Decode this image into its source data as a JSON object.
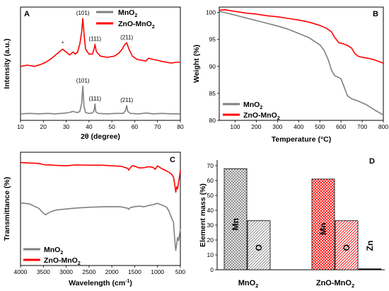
{
  "colors": {
    "mno2": "#808080",
    "zno_mno2": "#ff0000",
    "axis": "#000000"
  },
  "chart_data": [
    {
      "panel": "A",
      "type": "line",
      "xlabel": "2θ (degree)",
      "ylabel": "Intensity (a.u.)",
      "xlim": [
        10,
        80
      ],
      "xticks": [
        "10",
        "20",
        "30",
        "40",
        "50",
        "60",
        "70",
        "80"
      ],
      "legend": {
        "position": "top-right",
        "entries": [
          "MnO2",
          "ZnO-MnO2"
        ]
      },
      "annotations": [
        {
          "text": "(101)",
          "x": 37.3,
          "series": "ZnO-MnO2"
        },
        {
          "text": "(111)",
          "x": 42.6,
          "series": "ZnO-MnO2"
        },
        {
          "text": "(211)",
          "x": 56.5,
          "series": "ZnO-MnO2"
        },
        {
          "text": "*",
          "x": 28.5,
          "series": "ZnO-MnO2"
        },
        {
          "text": "(101)",
          "x": 37.3,
          "series": "MnO2"
        },
        {
          "text": "(111)",
          "x": 42.6,
          "series": "MnO2"
        },
        {
          "text": "(211)",
          "x": 56.5,
          "series": "MnO2"
        }
      ],
      "series": [
        {
          "name": "MnO2",
          "color": "#808080",
          "x": [
            10,
            14,
            18,
            22,
            25,
            28,
            30,
            32,
            33,
            34,
            35,
            36,
            36.8,
            37.3,
            37.8,
            38.5,
            40,
            41.5,
            42.2,
            42.6,
            43.0,
            44,
            48,
            52,
            55,
            56.0,
            56.5,
            57.0,
            58,
            62,
            65,
            68,
            72,
            76,
            80
          ],
          "y": [
            0.04,
            0.05,
            0.04,
            0.05,
            0.04,
            0.05,
            0.06,
            0.08,
            0.1,
            0.08,
            0.07,
            0.1,
            0.3,
            0.72,
            0.22,
            0.07,
            0.05,
            0.06,
            0.12,
            0.28,
            0.09,
            0.05,
            0.04,
            0.05,
            0.05,
            0.12,
            0.24,
            0.1,
            0.05,
            0.04,
            0.06,
            0.04,
            0.05,
            0.04,
            0.04
          ]
        },
        {
          "name": "ZnO-MnO2",
          "color": "#ff0000",
          "x": [
            10,
            13,
            16,
            19,
            21,
            23,
            25,
            27,
            28.5,
            30,
            31.5,
            33,
            34,
            35,
            36,
            36.8,
            37.3,
            37.8,
            38.5,
            40,
            41.5,
            42.2,
            42.6,
            43.2,
            45,
            48,
            51,
            53,
            54.5,
            55.5,
            56.5,
            57.5,
            59,
            61,
            63,
            65,
            66,
            68,
            70,
            72,
            74,
            76,
            78,
            80
          ],
          "y": [
            1.2,
            1.23,
            1.2,
            1.25,
            1.3,
            1.37,
            1.46,
            1.56,
            1.62,
            1.55,
            1.48,
            1.55,
            1.5,
            1.55,
            1.75,
            2.05,
            2.37,
            2.0,
            1.62,
            1.5,
            1.5,
            1.62,
            1.74,
            1.56,
            1.45,
            1.42,
            1.45,
            1.52,
            1.62,
            1.72,
            1.78,
            1.62,
            1.45,
            1.37,
            1.35,
            1.33,
            1.4,
            1.37,
            1.35,
            1.32,
            1.3,
            1.28,
            1.3,
            1.3
          ]
        }
      ]
    },
    {
      "panel": "B",
      "type": "line",
      "xlabel": "Temperature (°C)",
      "ylabel": "Weight (%)",
      "xlim": [
        25,
        800
      ],
      "ylim": [
        80,
        101
      ],
      "xticks": [
        100,
        200,
        300,
        400,
        500,
        600,
        700,
        800
      ],
      "yticks": [
        80,
        85,
        90,
        95,
        100
      ],
      "legend": {
        "position": "bottom-left",
        "entries": [
          "MnO2",
          "ZnO-MnO2"
        ]
      },
      "series": [
        {
          "name": "MnO2",
          "color": "#808080",
          "x": [
            25,
            50,
            100,
            150,
            200,
            250,
            300,
            350,
            400,
            450,
            500,
            520,
            540,
            555,
            570,
            585,
            600,
            615,
            630,
            650,
            680,
            720,
            760,
            800
          ],
          "y": [
            100.2,
            100.0,
            99.5,
            99.0,
            98.5,
            98.0,
            97.5,
            96.9,
            96.1,
            95.3,
            94.0,
            93.0,
            91.2,
            89.3,
            88.3,
            88.0,
            87.7,
            86.2,
            84.6,
            84.0,
            83.6,
            82.9,
            81.9,
            81.0
          ]
        },
        {
          "name": "ZnO-MnO2",
          "color": "#ff0000",
          "x": [
            25,
            50,
            100,
            150,
            200,
            250,
            300,
            350,
            400,
            450,
            500,
            530,
            555,
            570,
            590,
            610,
            630,
            650,
            665,
            680,
            700,
            730,
            760,
            800
          ],
          "y": [
            100.4,
            100.5,
            100.2,
            99.9,
            99.7,
            99.4,
            99.2,
            98.9,
            98.6,
            98.2,
            97.6,
            97.1,
            96.4,
            95.4,
            94.4,
            94.2,
            93.9,
            93.4,
            92.4,
            91.9,
            91.7,
            91.5,
            91.2,
            90.6
          ]
        }
      ]
    },
    {
      "panel": "C",
      "type": "line",
      "xlabel": "Wavelength (cm-1)",
      "ylabel": "Transmittance (%)",
      "xlim": [
        4000,
        500
      ],
      "x_reversed": true,
      "xticks": [
        4000,
        3500,
        3000,
        2500,
        2000,
        1500,
        1000,
        500
      ],
      "legend": {
        "position": "bottom-left",
        "entries": [
          "MnO2",
          "ZnO-MnO2"
        ]
      },
      "series": [
        {
          "name": "MnO2",
          "color": "#808080",
          "x": [
            4000,
            3800,
            3600,
            3500,
            3450,
            3400,
            3300,
            3200,
            3000,
            2800,
            2500,
            2200,
            2000,
            1800,
            1650,
            1630,
            1600,
            1500,
            1400,
            1300,
            1200,
            1100,
            1000,
            900,
            800,
            750,
            700,
            650,
            620,
            600,
            580,
            560,
            540,
            520,
            500
          ],
          "y": [
            3.1,
            3.05,
            2.85,
            2.62,
            2.55,
            2.62,
            2.72,
            2.78,
            2.82,
            2.86,
            2.9,
            2.92,
            2.93,
            2.92,
            2.85,
            2.8,
            2.88,
            2.93,
            2.95,
            2.92,
            2.98,
            3.02,
            3.08,
            3.0,
            2.9,
            2.72,
            2.45,
            2.2,
            1.3,
            0.9,
            1.2,
            1.5,
            1.35,
            1.6,
            1.9
          ]
        },
        {
          "name": "ZnO-MnO2",
          "color": "#ff0000",
          "x": [
            4000,
            3800,
            3600,
            3500,
            3450,
            3400,
            3300,
            3000,
            2900,
            2800,
            2500,
            2200,
            2000,
            1800,
            1650,
            1630,
            1600,
            1550,
            1500,
            1400,
            1300,
            1200,
            1100,
            1050,
            1000,
            900,
            800,
            700,
            650,
            620,
            600,
            580,
            560,
            540,
            520,
            500
          ],
          "y": [
            4.97,
            4.95,
            4.93,
            4.88,
            4.86,
            4.87,
            4.85,
            4.82,
            4.84,
            4.86,
            4.85,
            4.85,
            4.82,
            4.8,
            4.7,
            4.62,
            4.72,
            4.83,
            4.8,
            4.72,
            4.73,
            4.78,
            4.75,
            4.66,
            4.82,
            4.68,
            4.58,
            4.45,
            4.3,
            3.9,
            3.6,
            3.85,
            3.75,
            4.05,
            4.3,
            4.6
          ]
        }
      ]
    },
    {
      "panel": "D",
      "type": "bar",
      "ylabel": "Element mass (%)",
      "ylim": [
        0,
        70
      ],
      "yticks": [
        0,
        10,
        20,
        30,
        40,
        50,
        60,
        70
      ],
      "categories": [
        "MnO2",
        "ZnO-MnO2"
      ],
      "bars": [
        {
          "group": "MnO2",
          "element": "Mn",
          "value": 68,
          "color": "#808080",
          "pattern": "crosshatch"
        },
        {
          "group": "MnO2",
          "element": "O",
          "value": 33,
          "color": "#808080",
          "pattern": "diagonal"
        },
        {
          "group": "ZnO-MnO2",
          "element": "Mn",
          "value": 61,
          "color": "#ff0000",
          "pattern": "crosshatch"
        },
        {
          "group": "ZnO-MnO2",
          "element": "O",
          "value": 33,
          "color": "#ff0000",
          "pattern": "diagonal"
        },
        {
          "group": "ZnO-MnO2",
          "element": "Zn",
          "value": 0.8,
          "color": "#000000",
          "pattern": "solid"
        }
      ]
    }
  ]
}
